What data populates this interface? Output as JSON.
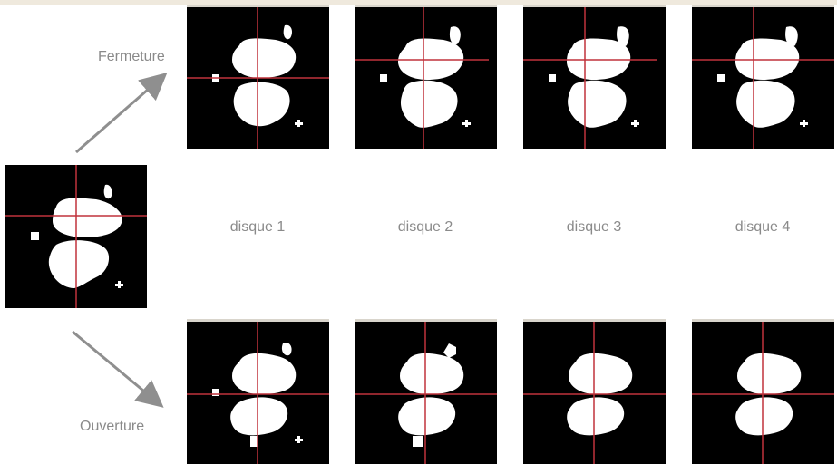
{
  "labels": {
    "closing": "Fermeture",
    "opening": "Ouverture"
  },
  "captions": [
    "disque 1",
    "disque 2",
    "disque 3",
    "disque 4"
  ],
  "colors": {
    "background": "#ffffff",
    "tile": "#000000",
    "shape": "#ffffff",
    "crosshair": "#c0323c",
    "arrow": "#8f8f8f",
    "text": "#8a8a8a"
  }
}
